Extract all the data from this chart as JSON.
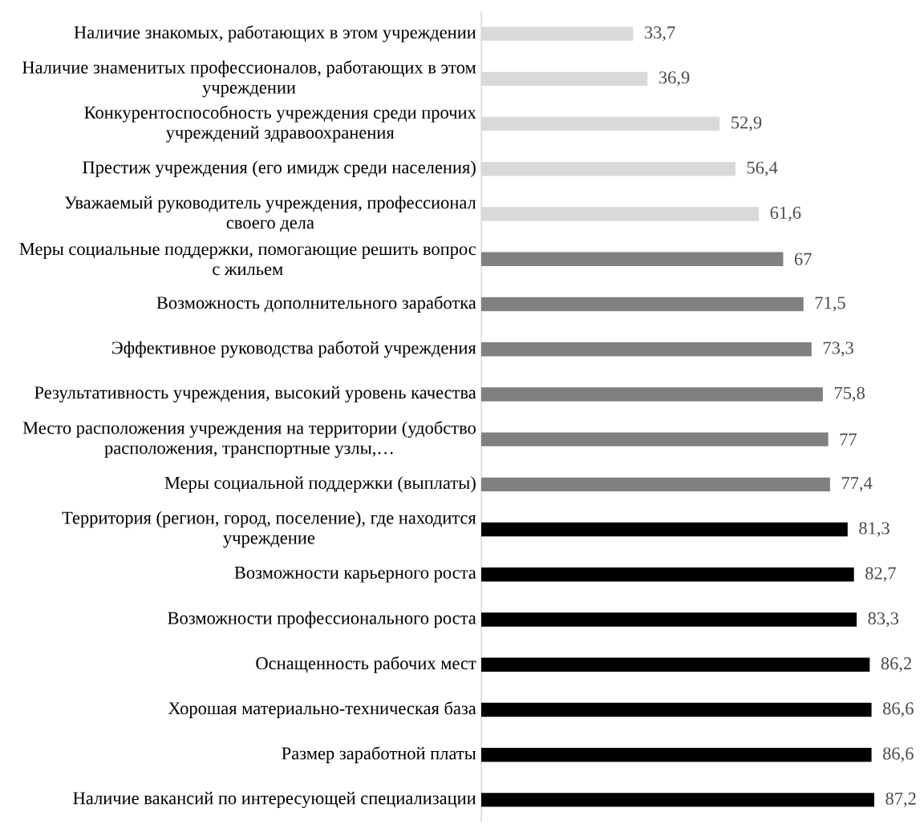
{
  "chart_data": {
    "type": "bar",
    "orientation": "horizontal",
    "categories": [
      "Наличие знакомых, работающих в этом учреждении",
      "Наличие знаменитых профессионалов, работающих в этом учреждении",
      "Конкурентоспособность учреждения среди прочих учреждений здравоохранения",
      "Престиж учреждения (его имидж среди населения)",
      "Уважаемый руководитель учреждения, профессионал своего дела",
      "Меры социальные поддержки, помогающие решить вопрос с жильем",
      "Возможность дополнительного заработка",
      "Эффективное руководства работой учреждения",
      "Результативность учреждения, высокий уровень качества",
      "Место расположения учреждения на территории (удобство расположения, транспортные узлы,…",
      "Меры социальной поддержки (выплаты)",
      "Территория (регион, город, поселение), где находится учреждение",
      "Возможности карьерного роста",
      "Возможности профессионального роста",
      "Оснащенность рабочих мест",
      "Хорошая материально-техническая база",
      "Размер заработной платы",
      "Наличие вакансий по интересующей специализации"
    ],
    "values": [
      33.7,
      36.9,
      52.9,
      56.4,
      61.6,
      67,
      71.5,
      73.3,
      75.8,
      77,
      77.4,
      81.3,
      82.7,
      83.3,
      86.2,
      86.6,
      86.6,
      87.2
    ],
    "value_labels": [
      "33,7",
      "36,9",
      "52,9",
      "56,4",
      "61,6",
      "67",
      "71,5",
      "73,3",
      "75,8",
      "77",
      "77,4",
      "81,3",
      "82,7",
      "83,3",
      "86,2",
      "86,6",
      "86,6",
      "87,2"
    ],
    "colors": [
      "#d9d9d9",
      "#d9d9d9",
      "#d9d9d9",
      "#d9d9d9",
      "#d9d9d9",
      "#808080",
      "#808080",
      "#808080",
      "#808080",
      "#808080",
      "#808080",
      "#000000",
      "#000000",
      "#000000",
      "#000000",
      "#000000",
      "#000000",
      "#000000"
    ]
  }
}
